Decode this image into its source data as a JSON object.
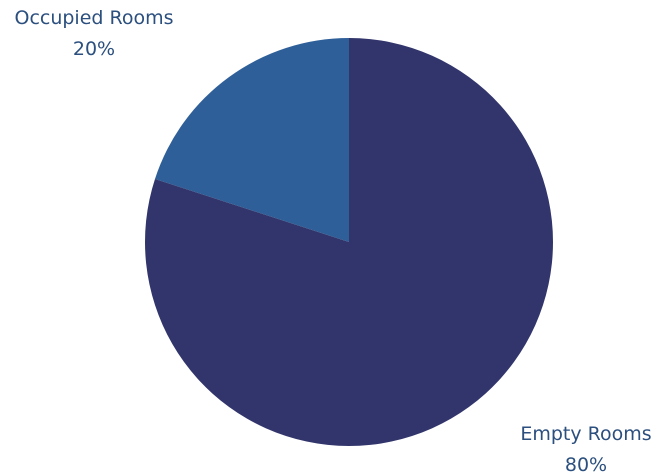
{
  "chart_data": {
    "type": "pie",
    "title": "",
    "slices": [
      {
        "label": "Occupied Rooms",
        "value": 20,
        "value_label": "20%",
        "color": "#2f5f98"
      },
      {
        "label": "Empty Rooms",
        "value": 80,
        "value_label": "80%",
        "color": "#31356b"
      }
    ],
    "start": "12 o'clock",
    "direction": "counterclockwise",
    "legend": "none",
    "labels": "outside"
  }
}
